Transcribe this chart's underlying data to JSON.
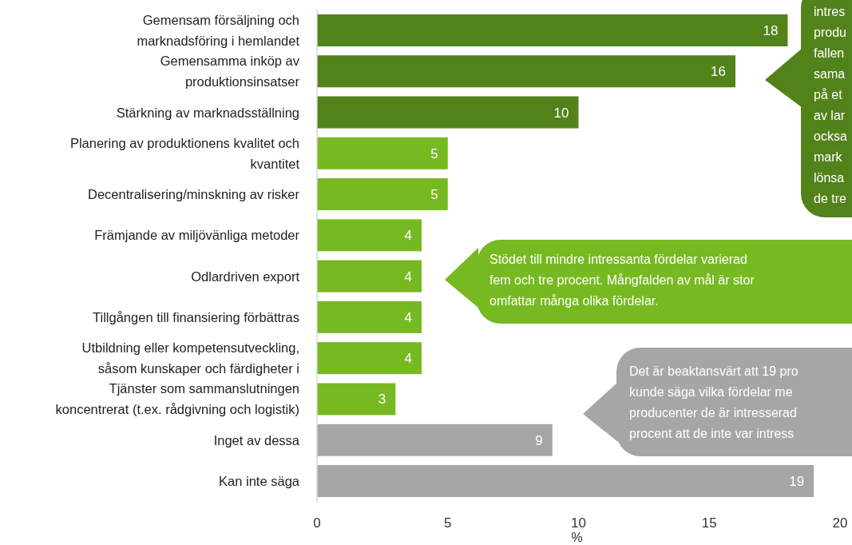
{
  "chart_data": {
    "type": "bar",
    "orientation": "horizontal",
    "xlabel": "%",
    "categories": [
      "Gemensam försäljning och\nmarknadsföring i hemlandet",
      "Gemensamma inköp av\nproduktionsinsatser",
      "Stärkning av marknadsställning",
      "Planering av produktionens kvalitet och\nkvantitet",
      "Decentralisering/minskning av risker",
      "Främjande av miljövänliga metoder",
      "Odlardriven export",
      "Tillgången till finansiering förbättras",
      "Utbildning eller kompetensutveckling,\nsåsom kunskaper och färdigheter i",
      "Tjänster som sammanslutningen\nkoncentrerat (t.ex. rådgivning och logistik)",
      "Inget av dessa",
      "Kan inte säga"
    ],
    "values": [
      18,
      16,
      10,
      5,
      5,
      4,
      4,
      4,
      4,
      3,
      9,
      19
    ],
    "colors": [
      "#52821a",
      "#52821a",
      "#52821a",
      "#76b921",
      "#76b921",
      "#76b921",
      "#76b921",
      "#76b921",
      "#76b921",
      "#76b921",
      "#a6a6a6",
      "#a6a6a6"
    ],
    "xlim": [
      0,
      20
    ],
    "xticks": [
      0,
      5,
      10,
      15,
      20
    ],
    "data_labels": true,
    "annotations": [
      "intres\nprodu\nfallen\nsama\npå et\nav lar\nocksa\nmark\nlönsa\nde tre",
      "Stödet till mindre intressanta fördelar varierad\nfem och tre procent. Mångfalden av mål är stor\nomfattar många olika fördelar.",
      "Det är beaktansvärt att 19 pro\nkunde säga vilka fördelar me\nproducenter de är intresserad\nprocent att de inte var intress"
    ]
  }
}
